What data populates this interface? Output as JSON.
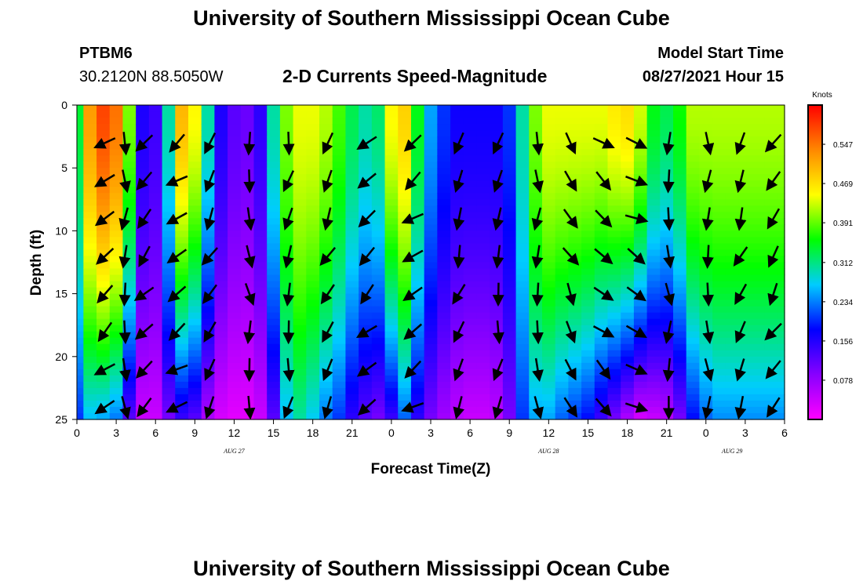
{
  "header": {
    "title": "University of Southern Mississippi Ocean Cube",
    "station": "PTBM6",
    "location": "30.2120N  88.5050W",
    "plot_title": "2-D Currents Speed-Magnitude",
    "model_start_label": "Model Start Time",
    "model_start_value": "08/27/2021 Hour 15"
  },
  "footer": {
    "title": "University of Southern Mississippi Ocean Cube"
  },
  "chart_data": {
    "type": "heatmap",
    "title": "2-D Currents Speed-Magnitude",
    "xlabel": "Forecast Time(Z)",
    "ylabel": "Depth (ft)",
    "x_tick_labels": [
      "0",
      "3",
      "6",
      "9",
      "12",
      "15",
      "18",
      "21",
      "0",
      "3",
      "6",
      "9",
      "12",
      "15",
      "18",
      "21",
      "0",
      "3",
      "6"
    ],
    "date_labels": [
      {
        "label": "AUG 27",
        "at_hour": 12
      },
      {
        "label": "AUG 28",
        "at_hour": 36
      },
      {
        "label": "AUG 29",
        "at_hour": 50
      }
    ],
    "y_tick_labels": [
      "0",
      "5",
      "10",
      "15",
      "20",
      "25"
    ],
    "xlim_hours": [
      0,
      54
    ],
    "ylim_ft": [
      0,
      25
    ],
    "y_inverted": true,
    "colorbar": {
      "unit": "Knots",
      "ticks": [
        "0.078",
        "0.156",
        "0.234",
        "0.312",
        "0.391",
        "0.469",
        "0.547"
      ],
      "range": [
        0,
        0.625
      ],
      "colors": [
        "#ff00ff",
        "#8800ff",
        "#0000ff",
        "#00ccff",
        "#00ff00",
        "#ffff00",
        "#ff8800",
        "#ff0000"
      ]
    },
    "speed_profile": {
      "hours": [
        0,
        1,
        2,
        3,
        4,
        5,
        6,
        7,
        8,
        9,
        10,
        11,
        12,
        13,
        14,
        15,
        16,
        17,
        18,
        19,
        20,
        21,
        22,
        23,
        24,
        25,
        26,
        27,
        28,
        29,
        30,
        31,
        32,
        33,
        34,
        35,
        36,
        37,
        38,
        39,
        40,
        41,
        42,
        43,
        44,
        45,
        46,
        47,
        48,
        49,
        50,
        51,
        52,
        53,
        54
      ],
      "surface_knots": [
        0.34,
        0.52,
        0.58,
        0.55,
        0.4,
        0.16,
        0.14,
        0.3,
        0.5,
        0.45,
        0.3,
        0.16,
        0.12,
        0.11,
        0.15,
        0.3,
        0.4,
        0.44,
        0.44,
        0.42,
        0.38,
        0.33,
        0.3,
        0.32,
        0.45,
        0.48,
        0.35,
        0.25,
        0.2,
        0.17,
        0.17,
        0.17,
        0.17,
        0.2,
        0.3,
        0.4,
        0.44,
        0.44,
        0.44,
        0.44,
        0.44,
        0.46,
        0.47,
        0.43,
        0.35,
        0.33,
        0.36,
        0.42,
        0.42,
        0.42,
        0.42,
        0.42,
        0.42,
        0.42,
        0.42
      ],
      "bottom_knots": [
        0.2,
        0.26,
        0.25,
        0.23,
        0.12,
        0.04,
        0.04,
        0.1,
        0.14,
        0.12,
        0.06,
        0.03,
        0.02,
        0.02,
        0.04,
        0.12,
        0.26,
        0.3,
        0.27,
        0.23,
        0.2,
        0.15,
        0.12,
        0.1,
        0.14,
        0.22,
        0.15,
        0.1,
        0.07,
        0.05,
        0.04,
        0.04,
        0.05,
        0.1,
        0.2,
        0.25,
        0.25,
        0.22,
        0.2,
        0.18,
        0.14,
        0.1,
        0.06,
        0.03,
        0.04,
        0.05,
        0.1,
        0.18,
        0.22,
        0.24,
        0.24,
        0.24,
        0.24,
        0.24,
        0.24
      ]
    },
    "vectors": {
      "hours": [
        3,
        4.5,
        6,
        8.5,
        11,
        14,
        17,
        20,
        23,
        26.5,
        30,
        33,
        36,
        38.5,
        41,
        43.5,
        46,
        49,
        51.5,
        54
      ],
      "depths_ft": [
        3,
        6,
        9,
        12,
        15,
        18,
        21,
        24
      ],
      "directions_deg": [
        220,
        270,
        230,
        215,
        240,
        275,
        260,
        245,
        225,
        215,
        250,
        260,
        270,
        300,
        320,
        330,
        270,
        270,
        250,
        240
      ]
    }
  }
}
